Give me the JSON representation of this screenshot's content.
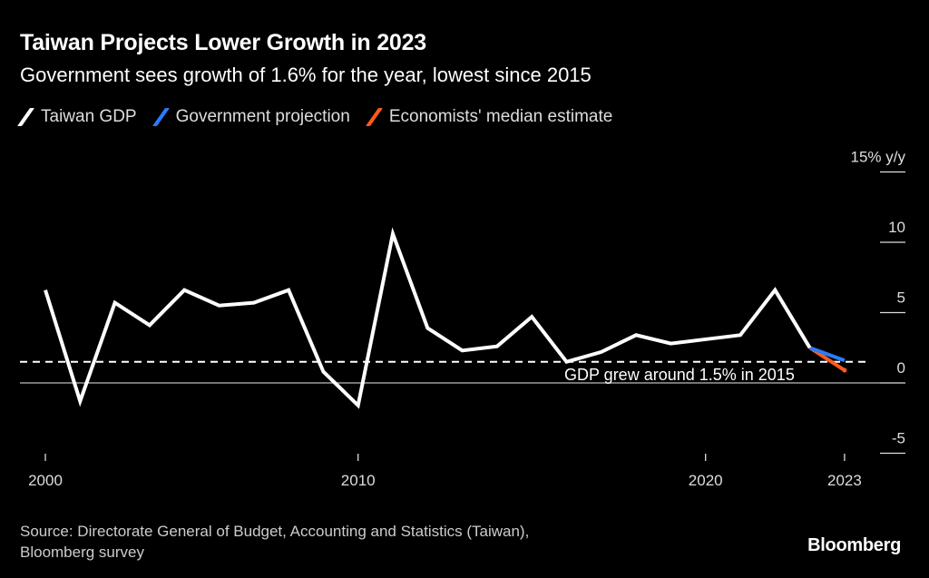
{
  "header": {
    "title": "Taiwan Projects Lower Growth in 2023",
    "subtitle": "Government sees growth of 1.6% for the year, lowest since 2015"
  },
  "legend": [
    {
      "label": "Taiwan GDP",
      "color": "#ffffff"
    },
    {
      "label": "Government projection",
      "color": "#2b7bff"
    },
    {
      "label": "Economists' median estimate",
      "color": "#ff5a1f"
    }
  ],
  "footer": {
    "source_line1": "Source: Directorate General of Budget, Accounting and Statistics (Taiwan),",
    "source_line2": "Bloomberg survey",
    "brand": "Bloomberg"
  },
  "chart_data": {
    "type": "line",
    "title": "Taiwan Projects Lower Growth in 2023",
    "subtitle": "Government sees growth of 1.6% for the year, lowest since 2015",
    "xlabel": "",
    "ylabel": "% y/y",
    "ylim": [
      -5,
      15
    ],
    "y_ticks": [
      {
        "value": 15,
        "label": "15% y/y"
      },
      {
        "value": 10,
        "label": "10"
      },
      {
        "value": 5,
        "label": "5"
      },
      {
        "value": 0,
        "label": "0"
      },
      {
        "value": -5,
        "label": "-5"
      }
    ],
    "x_ticks": [
      {
        "index": 0,
        "label": "2000"
      },
      {
        "index": 9,
        "label": "2010"
      },
      {
        "index": 19,
        "label": "2020"
      },
      {
        "index": 23,
        "label": "2023"
      }
    ],
    "grid": false,
    "legend_position": "top-left",
    "x": [
      2000,
      2001,
      2002,
      2003,
      2004,
      2005,
      2006,
      2007,
      2008,
      2009,
      2010,
      2011,
      2012,
      2013,
      2014,
      2015,
      2016,
      2017,
      2018,
      2019,
      2020,
      2021,
      2022,
      2023
    ],
    "series": [
      {
        "name": "Taiwan GDP",
        "color": "#ffffff",
        "x": [
          2000,
          2001,
          2002,
          2003,
          2004,
          2005,
          2006,
          2007,
          2008,
          2009,
          2010,
          2011,
          2012,
          2013,
          2014,
          2015,
          2016,
          2017,
          2018,
          2019,
          2020,
          2021,
          2022
        ],
        "values": [
          6.6,
          -1.3,
          5.7,
          4.1,
          6.6,
          5.5,
          5.7,
          6.6,
          0.8,
          -1.6,
          10.6,
          3.9,
          2.3,
          2.6,
          4.7,
          1.5,
          2.2,
          3.4,
          2.8,
          3.1,
          3.4,
          6.6,
          2.5
        ]
      },
      {
        "name": "Government projection",
        "color": "#2b7bff",
        "x": [
          2022,
          2023
        ],
        "values": [
          2.5,
          1.6
        ]
      },
      {
        "name": "Economists' median estimate",
        "color": "#ff5a1f",
        "x": [
          2022,
          2023
        ],
        "values": [
          2.5,
          0.9
        ]
      }
    ],
    "reference_lines": [
      {
        "value": 1.5,
        "style": "dashed",
        "label": "GDP grew around 1.5% in 2015"
      },
      {
        "value": 0,
        "style": "solid",
        "label": ""
      }
    ],
    "annotations": [
      {
        "text": "GDP grew around 1.5% in 2015",
        "x": 2015,
        "y": 1.5
      }
    ]
  }
}
